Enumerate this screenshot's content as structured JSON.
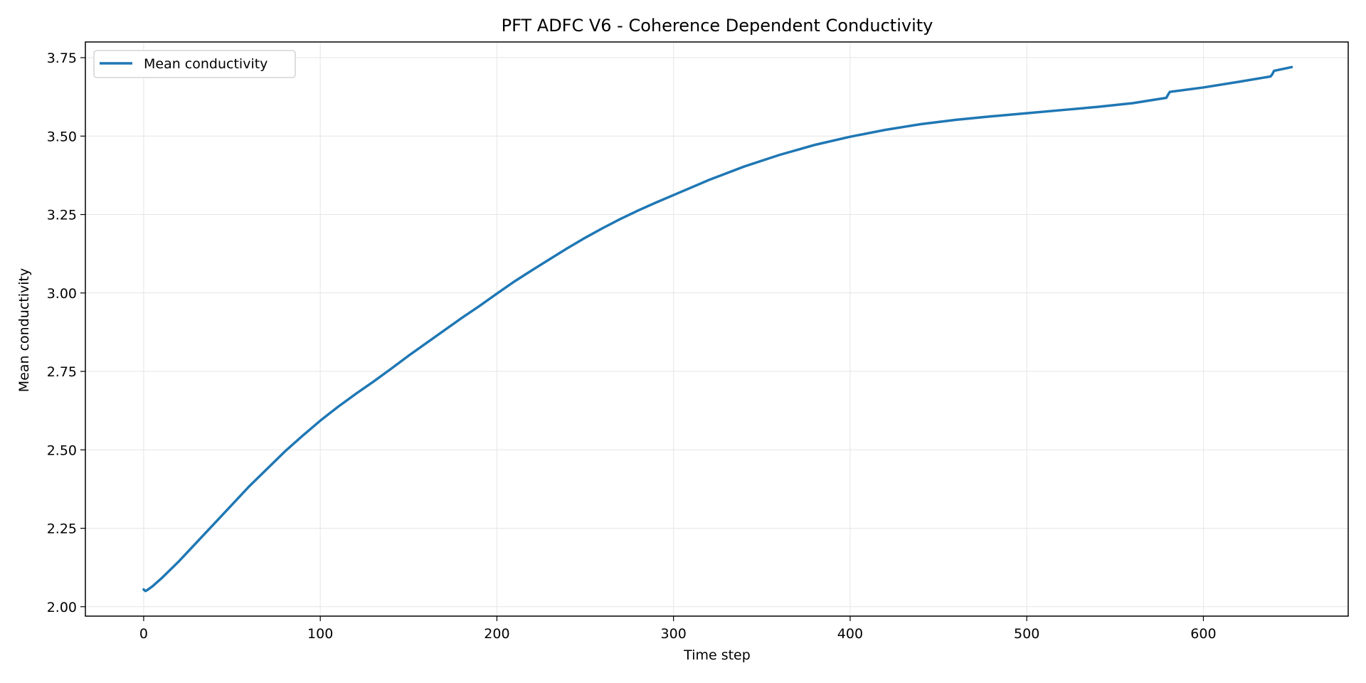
{
  "chart_data": {
    "type": "line",
    "title": "PFT ADFC V6 - Coherence Dependent Conductivity",
    "xlabel": "Time step",
    "ylabel": "Mean conductivity",
    "xlim": [
      -33,
      682
    ],
    "ylim": [
      1.97,
      3.8
    ],
    "xticks": [
      0,
      100,
      200,
      300,
      400,
      500,
      600
    ],
    "yticks": [
      2.0,
      2.25,
      2.5,
      2.75,
      3.0,
      3.25,
      3.5,
      3.75
    ],
    "grid": true,
    "legend_position": "top-left",
    "series": [
      {
        "name": "Mean conductivity",
        "color": "#1f77b4",
        "x": [
          0,
          1,
          2,
          5,
          10,
          20,
          30,
          40,
          50,
          60,
          70,
          80,
          90,
          100,
          110,
          120,
          130,
          140,
          150,
          160,
          170,
          180,
          190,
          200,
          210,
          220,
          230,
          240,
          250,
          260,
          270,
          280,
          290,
          300,
          320,
          340,
          360,
          380,
          400,
          420,
          440,
          460,
          480,
          500,
          520,
          540,
          560,
          579,
          580,
          581,
          600,
          620,
          638,
          639,
          640,
          650
        ],
        "y": [
          2.055,
          2.05,
          2.053,
          2.065,
          2.09,
          2.145,
          2.205,
          2.265,
          2.325,
          2.385,
          2.44,
          2.495,
          2.545,
          2.593,
          2.637,
          2.678,
          2.717,
          2.758,
          2.8,
          2.84,
          2.88,
          2.92,
          2.958,
          2.998,
          3.037,
          3.073,
          3.108,
          3.143,
          3.176,
          3.207,
          3.236,
          3.263,
          3.288,
          3.312,
          3.36,
          3.403,
          3.44,
          3.472,
          3.498,
          3.52,
          3.538,
          3.552,
          3.563,
          3.573,
          3.583,
          3.593,
          3.605,
          3.622,
          3.632,
          3.641,
          3.655,
          3.673,
          3.69,
          3.697,
          3.708,
          3.72
        ]
      }
    ]
  }
}
